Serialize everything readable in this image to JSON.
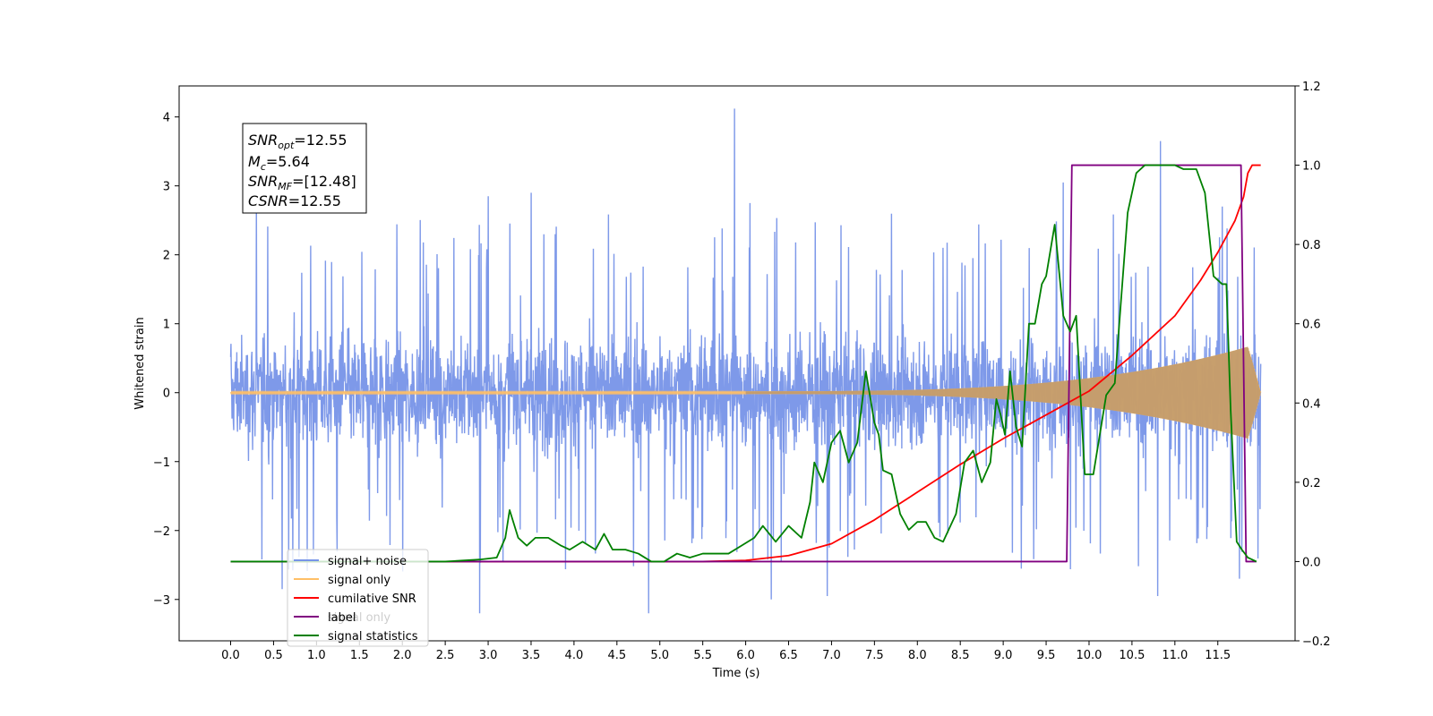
{
  "chart_data": {
    "type": "line",
    "xlabel": "Time (s)",
    "ylabel": "Whitened strain",
    "xlim": [
      -0.6,
      12.4
    ],
    "ylim_left": [
      -3.6,
      4.45
    ],
    "ylim_right": [
      -0.2,
      1.2
    ],
    "x_ticks": [
      "0.0",
      "0.5",
      "1.0",
      "1.5",
      "2.0",
      "2.5",
      "3.0",
      "3.5",
      "4.0",
      "4.5",
      "5.0",
      "5.5",
      "6.0",
      "6.5",
      "7.0",
      "7.5",
      "8.0",
      "8.5",
      "9.0",
      "9.5",
      "10.0",
      "10.5",
      "11.0",
      "11.5"
    ],
    "y_left_ticks": [
      "−3",
      "−2",
      "−1",
      "0",
      "1",
      "2",
      "3",
      "4"
    ],
    "y_right_ticks": [
      "−0.2",
      "0.0",
      "0.2",
      "0.4",
      "0.6",
      "0.8",
      "1.0",
      "1.2"
    ],
    "annotation": {
      "lines": [
        {
          "base": "SNR",
          "sub": "opt",
          "value": "=12.55"
        },
        {
          "base": "M",
          "sub": "c",
          "value": "=5.64"
        },
        {
          "base": "SNR",
          "sub": "MF",
          "value": "=[12.48]"
        },
        {
          "base": "CSNR",
          "sub": "",
          "value": "=12.55"
        }
      ]
    },
    "legend": {
      "placement": "lower-left",
      "entries": [
        {
          "label": "signal+ noise",
          "color": "#7794e8"
        },
        {
          "label": "signal only",
          "color": "#ffbf66"
        },
        {
          "label": "cumilative SNR",
          "color": "#ff0000"
        },
        {
          "label": "label",
          "color": "#800080"
        },
        {
          "label": "signal statistics",
          "color": "#008000"
        }
      ],
      "ghost_label": "signal only"
    },
    "series": [
      {
        "name": "signal+ noise",
        "axis": "left",
        "color": "#7794e8",
        "x_range": [
          0.0,
          12.0
        ],
        "amplitude_band": [
          -1.4,
          1.45
        ],
        "spikes": [
          [
            5.87,
            4.12
          ],
          [
            10.83,
            3.65
          ],
          [
            0.6,
            -2.85
          ],
          [
            2.9,
            -3.2
          ],
          [
            4.87,
            -3.2
          ],
          [
            6.3,
            -3.0
          ],
          [
            6.95,
            -2.95
          ],
          [
            10.8,
            -2.95
          ],
          [
            11.75,
            -2.7
          ],
          [
            3.0,
            2.85
          ],
          [
            3.5,
            2.9
          ],
          [
            9.7,
            3.05
          ],
          [
            11.55,
            2.7
          ],
          [
            0.3,
            2.85
          ],
          [
            6.05,
            2.75
          ]
        ]
      },
      {
        "name": "signal only",
        "axis": "left",
        "color": "#ffbf66",
        "chirp": {
          "start_time": 6.0,
          "end_time": 12.0,
          "peak_amplitude": 0.72,
          "base_amplitude": 0.02
        }
      },
      {
        "name": "cumilative SNR",
        "axis": "right",
        "color": "#ff0000",
        "x": [
          0.0,
          5.5,
          6.0,
          6.5,
          7.0,
          7.5,
          8.0,
          8.5,
          9.0,
          9.5,
          10.0,
          10.5,
          11.0,
          11.3,
          11.5,
          11.7,
          11.8,
          11.85,
          11.9,
          12.0
        ],
        "y": [
          0.0,
          0.0,
          0.003,
          0.015,
          0.045,
          0.105,
          0.175,
          0.245,
          0.31,
          0.37,
          0.43,
          0.52,
          0.62,
          0.71,
          0.78,
          0.86,
          0.92,
          0.98,
          1.0,
          1.0
        ]
      },
      {
        "name": "label",
        "axis": "right",
        "color": "#800080",
        "x": [
          0.0,
          9.74,
          9.8,
          11.77,
          11.83,
          11.95
        ],
        "y": [
          0.0,
          0.0,
          1.0,
          1.0,
          0.0,
          0.0
        ]
      },
      {
        "name": "signal statistics",
        "axis": "right",
        "color": "#008000",
        "x": [
          0.0,
          2.5,
          2.9,
          3.1,
          3.2,
          3.25,
          3.35,
          3.45,
          3.55,
          3.7,
          3.85,
          3.95,
          4.1,
          4.25,
          4.35,
          4.45,
          4.6,
          4.75,
          4.9,
          5.05,
          5.2,
          5.35,
          5.5,
          5.65,
          5.8,
          5.95,
          6.1,
          6.2,
          6.35,
          6.5,
          6.65,
          6.75,
          6.8,
          6.9,
          7.0,
          7.1,
          7.2,
          7.3,
          7.4,
          7.5,
          7.55,
          7.6,
          7.7,
          7.8,
          7.9,
          8.0,
          8.1,
          8.2,
          8.3,
          8.45,
          8.55,
          8.65,
          8.75,
          8.85,
          8.92,
          8.97,
          9.02,
          9.08,
          9.15,
          9.22,
          9.3,
          9.37,
          9.45,
          9.5,
          9.6,
          9.7,
          9.78,
          9.85,
          9.95,
          10.05,
          10.2,
          10.3,
          10.45,
          10.55,
          10.65,
          10.75,
          10.85,
          11.0,
          11.1,
          11.25,
          11.35,
          11.45,
          11.55,
          11.6,
          11.65,
          11.72,
          11.78,
          11.85,
          11.95
        ],
        "y": [
          0.0,
          0.0,
          0.005,
          0.01,
          0.06,
          0.13,
          0.06,
          0.04,
          0.06,
          0.06,
          0.04,
          0.03,
          0.05,
          0.03,
          0.07,
          0.03,
          0.03,
          0.02,
          0.0,
          0.0,
          0.02,
          0.01,
          0.02,
          0.02,
          0.02,
          0.04,
          0.06,
          0.09,
          0.05,
          0.09,
          0.06,
          0.15,
          0.25,
          0.2,
          0.3,
          0.33,
          0.25,
          0.3,
          0.48,
          0.35,
          0.32,
          0.23,
          0.22,
          0.12,
          0.08,
          0.1,
          0.1,
          0.06,
          0.05,
          0.12,
          0.25,
          0.28,
          0.2,
          0.25,
          0.41,
          0.37,
          0.32,
          0.48,
          0.34,
          0.29,
          0.6,
          0.6,
          0.7,
          0.72,
          0.85,
          0.62,
          0.58,
          0.62,
          0.22,
          0.22,
          0.42,
          0.45,
          0.88,
          0.98,
          1.0,
          1.0,
          1.0,
          1.0,
          0.99,
          0.99,
          0.93,
          0.72,
          0.7,
          0.7,
          0.38,
          0.05,
          0.03,
          0.01,
          0.0
        ]
      }
    ]
  }
}
